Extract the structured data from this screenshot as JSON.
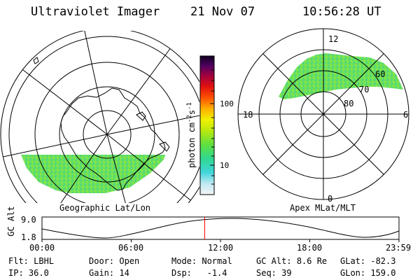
{
  "header": {
    "title": "Ultraviolet Imager",
    "date": "21 Nov 07",
    "time": "10:56:28 UT"
  },
  "left_map": {
    "caption": "Geographic Lat/Lon"
  },
  "right_map": {
    "caption": "Apex MLat/MLT",
    "mlt_labels": [
      "12",
      "18",
      "6",
      "0"
    ],
    "lat_labels": [
      "60",
      "70",
      "80"
    ]
  },
  "colorbar": {
    "unit_label": "photon cm",
    "unit_sup1": "-2",
    "unit_mid": "s",
    "unit_sup2": "-1",
    "tick_labels": [
      "100",
      "10"
    ]
  },
  "altitude_plot": {
    "ylabel": "GC Alt",
    "y_ticks": [
      "9.0",
      "1.8"
    ],
    "x_ticks": [
      "00:00",
      "06:00",
      "12:00",
      "18:00",
      "23:59"
    ],
    "marker_time_hours": 10.94
  },
  "info": {
    "row1": [
      {
        "label": "Flt:",
        "value": "LBHL"
      },
      {
        "label": "Door:",
        "value": "Open"
      },
      {
        "label": "Mode:",
        "value": "Normal"
      },
      {
        "label": "GC Alt:",
        "value": "8.6 Re"
      },
      {
        "label": "GLat:",
        "value": "-82.3"
      }
    ],
    "row2": [
      {
        "label": "IP:",
        "value": "36.0"
      },
      {
        "label": "Gain:",
        "value": "14"
      },
      {
        "label": "Dsp:",
        "value": "-1.4"
      },
      {
        "label": "Seq:",
        "value": "39"
      },
      {
        "label": "GLon:",
        "value": "159.0"
      }
    ]
  },
  "colors": {
    "aurora_green": "#66e060",
    "marker": "#ff0000"
  }
}
